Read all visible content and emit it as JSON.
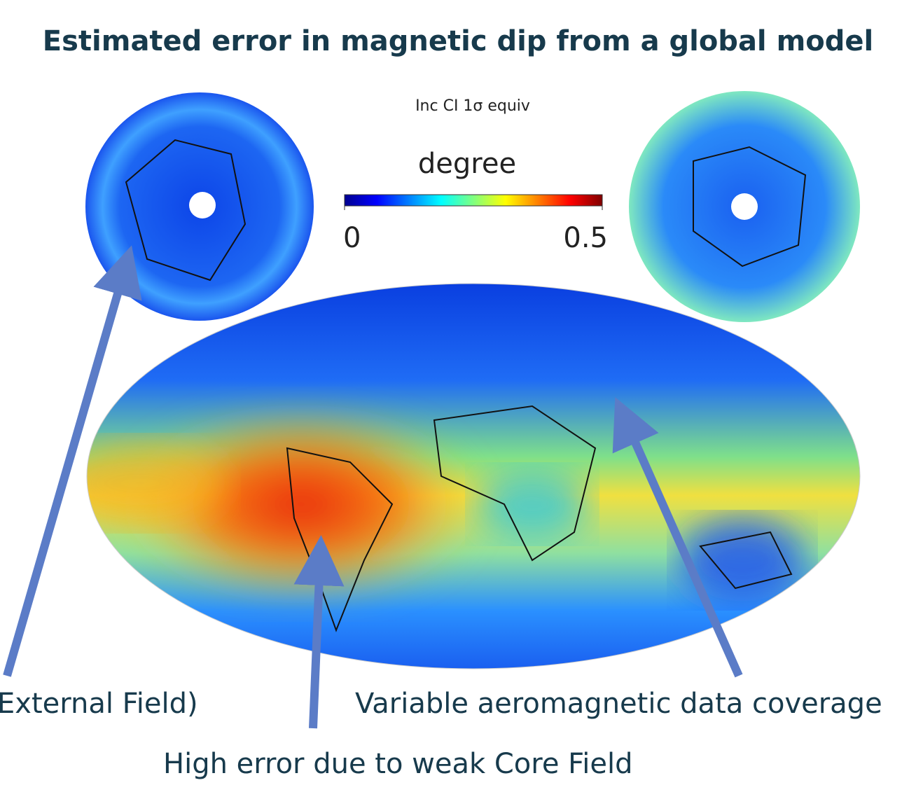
{
  "title": "Estimated error in magnetic dip from a global model",
  "colorbar": {
    "title": "Inc CI 1σ equiv",
    "unit": "degree",
    "range": [
      0,
      0.5
    ],
    "ticks": [
      0,
      0.5
    ]
  },
  "annotations": [
    "External Field)",
    "Variable aeromagnetic data coverage",
    "High error due to weak Core Field"
  ]
}
